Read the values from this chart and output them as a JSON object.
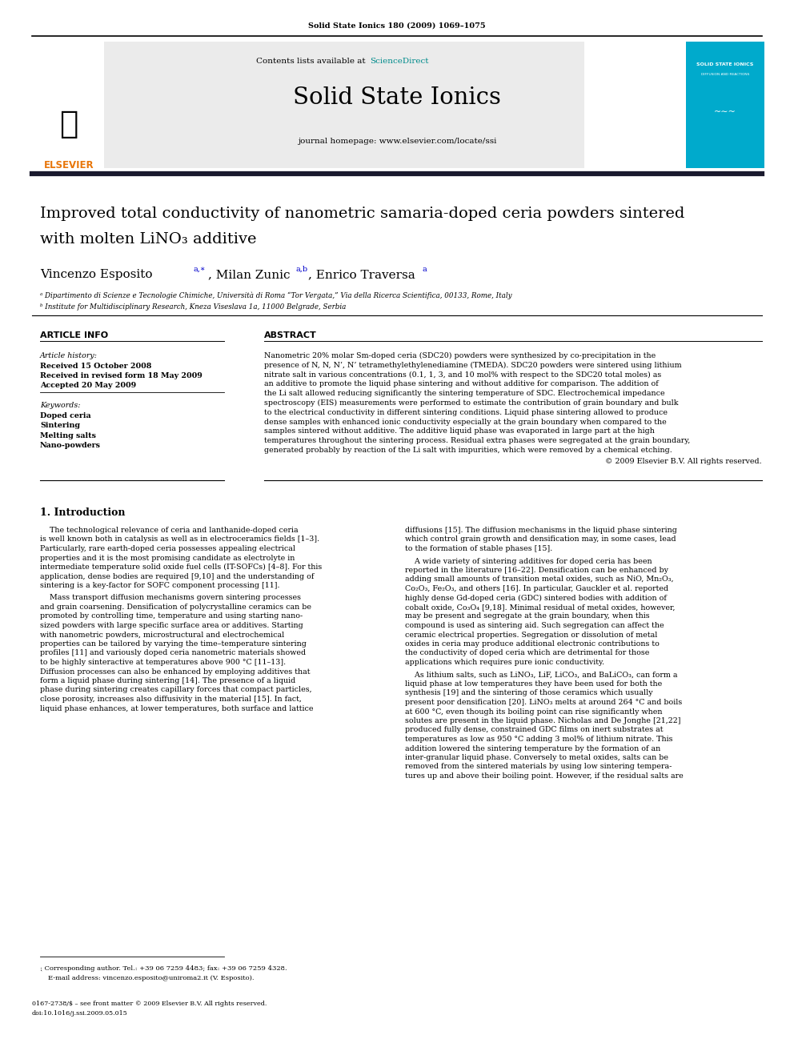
{
  "journal_ref": "Solid State Ionics 180 (2009) 1069–1075",
  "journal_name": "Solid State Ionics",
  "journal_homepage": "journal homepage: www.elsevier.com/locate/ssi",
  "contents_text": "Contents lists available at ScienceDirect",
  "paper_title_line1": "Improved total conductivity of nanometric samaria-doped ceria powders sintered",
  "paper_title_line2": "with molten LiNO₃ additive",
  "article_info_header": "ARTICLE INFO",
  "abstract_header": "ABSTRACT",
  "article_history_label": "Article history:",
  "received_line": "Received 15 October 2008",
  "revised_line": "Received in revised form 18 May 2009",
  "accepted_line": "Accepted 20 May 2009",
  "keywords_label": "Keywords:",
  "keywords": [
    "Doped ceria",
    "Sintering",
    "Melting salts",
    "Nano-powders"
  ],
  "copyright": "© 2009 Elsevier B.V. All rights reserved.",
  "intro_header": "1. Introduction",
  "issn_text": "0167-2738/$ – see front matter © 2009 Elsevier B.V. All rights reserved.",
  "doi_text": "doi:10.1016/j.ssi.2009.05.015",
  "bg_color": "#ffffff",
  "dark_line_color": "#1a1a2e",
  "journal_box_bg": "#00AACC",
  "sciencedirect_color": "#008B8B",
  "blue_ref_color": "#0000cc"
}
